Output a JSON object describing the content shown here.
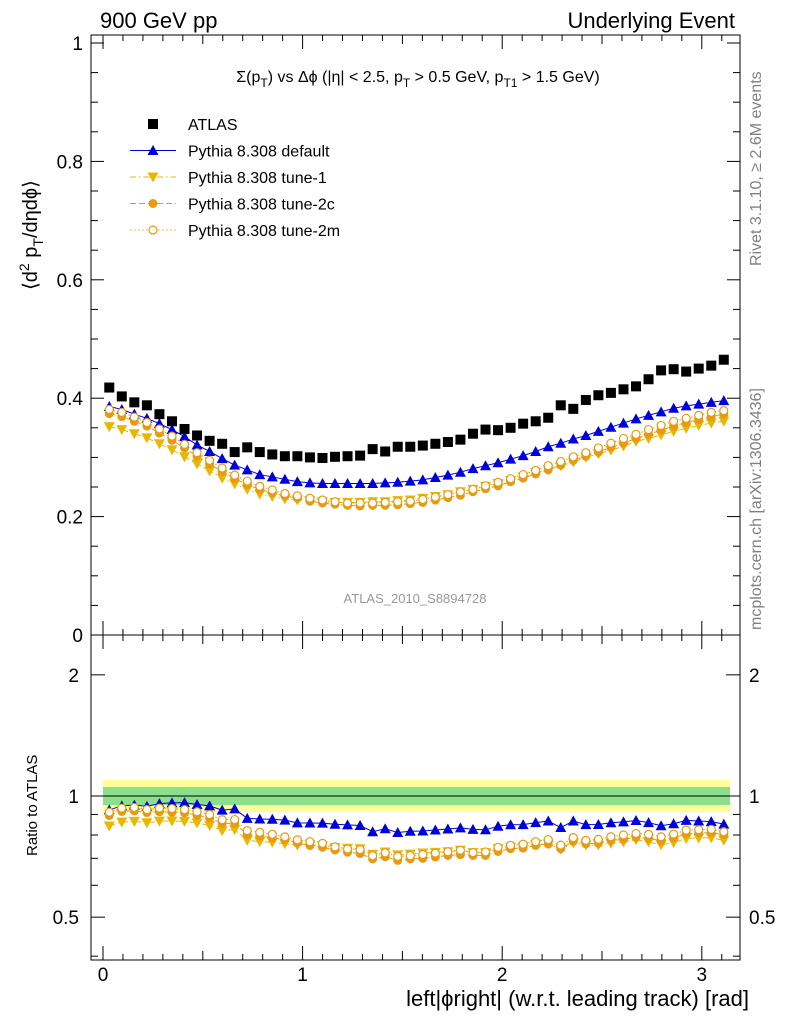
{
  "header": {
    "left": "900 GeV pp",
    "right": "Underlying Event"
  },
  "side_labels": {
    "rivet": "Rivet 3.1.10, ≥ 2.6M events",
    "mcplots": "mcplots.cern.ch [arXiv:1306.3436]"
  },
  "chart_data": [
    {
      "type": "scatter",
      "title": "Σ(p_T) vs Δϕ (|η| < 2.5, p_T > 0.5 GeV, p_T1 > 1.5 GeV)",
      "analysis_label": "ATLAS_2010_S8894728",
      "ylabel": "⟨d² p_T/dηdϕ⟩",
      "xlabel": "",
      "xlim": [
        -0.08,
        3.2
      ],
      "ylim": [
        0,
        1.01
      ],
      "yticks": [
        "0",
        "0.2",
        "0.4",
        "0.6",
        "0.8",
        "1"
      ],
      "legend_position": "top-left",
      "grid": false,
      "x": [
        0.0314,
        0.0942,
        0.157,
        0.2199,
        0.2827,
        0.3456,
        0.4084,
        0.4712,
        0.5341,
        0.5969,
        0.6597,
        0.7226,
        0.7854,
        0.8482,
        0.9111,
        0.9739,
        1.0367,
        1.0996,
        1.1624,
        1.2252,
        1.2881,
        1.3509,
        1.4137,
        1.4766,
        1.5394,
        1.6022,
        1.6651,
        1.7279,
        1.7907,
        1.8536,
        1.9164,
        1.9792,
        2.0421,
        2.1049,
        2.1677,
        2.2306,
        2.2934,
        2.3562,
        2.4191,
        2.4819,
        2.5447,
        2.6076,
        2.6704,
        2.7332,
        2.7961,
        2.8589,
        2.9217,
        2.9845,
        3.0474,
        3.1102
      ],
      "series": [
        {
          "name": "ATLAS",
          "marker": "square-filled",
          "color": "#000000",
          "values": [
            0.418,
            0.403,
            0.393,
            0.388,
            0.373,
            0.361,
            0.348,
            0.337,
            0.328,
            0.323,
            0.309,
            0.317,
            0.309,
            0.305,
            0.302,
            0.302,
            0.3,
            0.299,
            0.301,
            0.302,
            0.303,
            0.314,
            0.31,
            0.318,
            0.318,
            0.32,
            0.323,
            0.326,
            0.33,
            0.34,
            0.347,
            0.346,
            0.35,
            0.357,
            0.361,
            0.367,
            0.388,
            0.382,
            0.397,
            0.405,
            0.409,
            0.415,
            0.42,
            0.432,
            0.447,
            0.449,
            0.445,
            0.45,
            0.455,
            0.465
          ]
        },
        {
          "name": "Pythia 8.308 default",
          "marker": "triangle-up-filled",
          "color": "#0000dd",
          "line": "solid",
          "values": [
            0.386,
            0.381,
            0.373,
            0.366,
            0.357,
            0.347,
            0.335,
            0.321,
            0.31,
            0.298,
            0.287,
            0.279,
            0.271,
            0.267,
            0.263,
            0.259,
            0.257,
            0.256,
            0.256,
            0.256,
            0.256,
            0.256,
            0.257,
            0.258,
            0.26,
            0.262,
            0.266,
            0.27,
            0.275,
            0.281,
            0.286,
            0.291,
            0.297,
            0.303,
            0.31,
            0.318,
            0.324,
            0.331,
            0.337,
            0.344,
            0.351,
            0.358,
            0.365,
            0.371,
            0.377,
            0.383,
            0.387,
            0.39,
            0.393,
            0.396
          ]
        },
        {
          "name": "Pythia 8.308 tune-1",
          "marker": "triangle-down-filled",
          "color": "#e8b800",
          "line": "dashdot",
          "values": [
            0.352,
            0.347,
            0.34,
            0.333,
            0.323,
            0.313,
            0.301,
            0.289,
            0.277,
            0.265,
            0.255,
            0.246,
            0.238,
            0.234,
            0.23,
            0.228,
            0.227,
            0.225,
            0.224,
            0.224,
            0.224,
            0.225,
            0.225,
            0.227,
            0.228,
            0.231,
            0.234,
            0.237,
            0.242,
            0.246,
            0.251,
            0.256,
            0.261,
            0.267,
            0.274,
            0.279,
            0.286,
            0.292,
            0.3,
            0.306,
            0.312,
            0.319,
            0.327,
            0.332,
            0.338,
            0.344,
            0.349,
            0.354,
            0.358,
            0.361
          ]
        },
        {
          "name": "Pythia 8.308 tune-2c",
          "marker": "circle-filled",
          "color": "#e89a10",
          "line": "dashed",
          "values": [
            0.374,
            0.369,
            0.361,
            0.353,
            0.341,
            0.329,
            0.316,
            0.302,
            0.289,
            0.276,
            0.264,
            0.254,
            0.246,
            0.24,
            0.235,
            0.231,
            0.226,
            0.223,
            0.221,
            0.219,
            0.218,
            0.219,
            0.219,
            0.22,
            0.222,
            0.224,
            0.228,
            0.232,
            0.236,
            0.242,
            0.247,
            0.252,
            0.259,
            0.265,
            0.272,
            0.279,
            0.287,
            0.295,
            0.302,
            0.309,
            0.317,
            0.324,
            0.332,
            0.339,
            0.346,
            0.353,
            0.359,
            0.364,
            0.369,
            0.373
          ]
        },
        {
          "name": "Pythia 8.308 tune-2m",
          "marker": "circle-open",
          "color": "#e89a10",
          "line": "dotted",
          "values": [
            0.381,
            0.376,
            0.368,
            0.359,
            0.348,
            0.336,
            0.322,
            0.308,
            0.295,
            0.282,
            0.27,
            0.26,
            0.251,
            0.245,
            0.239,
            0.235,
            0.231,
            0.228,
            0.225,
            0.223,
            0.223,
            0.223,
            0.224,
            0.225,
            0.226,
            0.229,
            0.233,
            0.237,
            0.242,
            0.246,
            0.252,
            0.258,
            0.264,
            0.271,
            0.278,
            0.286,
            0.293,
            0.301,
            0.308,
            0.316,
            0.324,
            0.332,
            0.339,
            0.347,
            0.354,
            0.361,
            0.366,
            0.371,
            0.376,
            0.379
          ]
        }
      ]
    },
    {
      "type": "scatter",
      "title": "",
      "ylabel": "Ratio to ATLAS",
      "xlabel": "left|ϕright| (w.r.t. leading track) [rad]",
      "xlim": [
        -0.08,
        3.2
      ],
      "xticks": [
        "0",
        "1",
        "2",
        "3"
      ],
      "ylim": [
        0.4,
        2.35
      ],
      "ylog": true,
      "yticks": [
        "0.5",
        "1",
        "2"
      ],
      "reference_line": 1,
      "uncertainty_bands": {
        "inner": 0.05,
        "outer": 0.1,
        "inner_color": "#8ce08c",
        "outer_color": "#ffff99"
      },
      "series_ratio_of": "ATLAS"
    }
  ]
}
